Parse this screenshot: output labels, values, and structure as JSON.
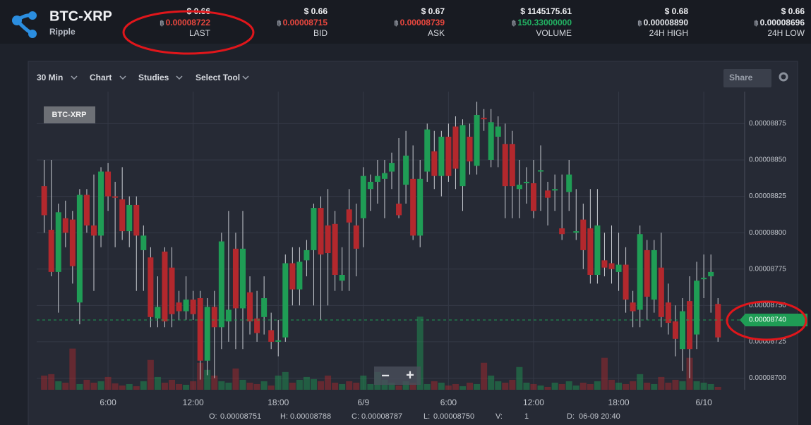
{
  "header": {
    "pair": "BTC-XRP",
    "name": "Ripple",
    "btc_symbol": "฿",
    "stats": [
      {
        "usd": "$ 0.66",
        "btc": "0.00008722",
        "label": "LAST",
        "btc_color": "#e8473e"
      },
      {
        "usd": "$ 0.66",
        "btc": "0.00008715",
        "label": "BID",
        "btc_color": "#e8473e"
      },
      {
        "usd": "$ 0.67",
        "btc": "0.00008739",
        "label": "ASK",
        "btc_color": "#e8473e"
      },
      {
        "usd": "$ 1145175.61",
        "btc": "150.33000000",
        "label": "VOLUME",
        "btc_color": "#22b363"
      },
      {
        "usd": "$ 0.68",
        "btc": "0.00008890",
        "label": "24H HIGH",
        "btc_color": "#e6e8ec"
      },
      {
        "usd": "$ 0.66",
        "btc": "0.00008696",
        "label": "24H LOW",
        "btc_color": "#e6e8ec"
      }
    ]
  },
  "toolbar": {
    "interval": "30 Min",
    "items": [
      "Chart",
      "Studies",
      "Select Tool"
    ],
    "share": "Share",
    "zoom_out": "−",
    "zoom_in": "+"
  },
  "chart_data": {
    "type": "candlestick",
    "symbol_label": "BTC-XRP",
    "up_color": "#1f9d55",
    "down_color": "#b3282d",
    "grid": true,
    "x": [
      1.5,
      2,
      2.5,
      3,
      3.5,
      4,
      4.5,
      5,
      5.5,
      6,
      6.5,
      7,
      7.5,
      8,
      8.5,
      9,
      9.5,
      10,
      10.5,
      11,
      11.5,
      12,
      12.5,
      13,
      13.5,
      14,
      14.5,
      15,
      15.5,
      16,
      16.5,
      17,
      17.5,
      18,
      18.5,
      19,
      19.5,
      20,
      20.5,
      21,
      21.5,
      22,
      22.5,
      23,
      23.5,
      24,
      24.5,
      25,
      25.5,
      26,
      26.5,
      27,
      27.5,
      28,
      28.5,
      29,
      29.5,
      30,
      30.5,
      31,
      31.5,
      32,
      32.5,
      33,
      33.5,
      34,
      34.5,
      35,
      35.5,
      36,
      36.5,
      37,
      37.5,
      38,
      38.5,
      39,
      39.5,
      40,
      40.5,
      41,
      41.5,
      42,
      42.5,
      43,
      43.5,
      44,
      44.5,
      45,
      45.5,
      46,
      46.5,
      47,
      47.5,
      48,
      48.5,
      49
    ],
    "open": [
      8.832e-05,
      8.802e-05,
      8.773e-05,
      8.81e-05,
      8.809e-05,
      8.752e-05,
      8.826e-05,
      8.805e-05,
      8.798e-05,
      8.842e-05,
      8.825e-05,
      8.823e-05,
      8.801e-05,
      8.819e-05,
      8.788e-05,
      8.783e-05,
      8.741e-05,
      8.787e-05,
      8.776e-05,
      8.752e-05,
      8.746e-05,
      8.754e-05,
      8.755e-05,
      8.712e-05,
      8.749e-05,
      8.735e-05,
      8.739e-05,
      8.789e-05,
      8.748e-05,
      8.759e-05,
      8.741e-05,
      8.742e-05,
      8.733e-05,
      8.725e-05,
      8.728e-05,
      8.779e-05,
      8.761e-05,
      8.781e-05,
      8.788e-05,
      8.817e-05,
      8.805e-05,
      8.806e-05,
      8.767e-05,
      8.816e-05,
      8.805e-05,
      8.81e-05,
      8.83e-05,
      8.835e-05,
      8.837e-05,
      8.842e-05,
      8.82e-05,
      8.833e-05,
      8.837e-05,
      8.798e-05,
      8.842e-05,
      8.856e-05,
      8.839e-05,
      8.866e-05,
      8.873e-05,
      8.832e-05,
      8.866e-05,
      8.846e-05,
      8.879e-05,
      8.85e-05,
      8.866e-05,
      8.861e-05,
      8.861e-05,
      8.83e-05,
      8.834e-05,
      8.834e-05,
      8.842e-05,
      8.829e-05,
      8.829e-05,
      8.803e-05,
      8.828e-05,
      8.8e-05,
      8.809e-05,
      8.803e-05,
      8.771e-05,
      8.781e-05,
      8.779e-05,
      8.773e-05,
      8.778e-05,
      8.752e-05,
      8.747e-05,
      8.788e-05,
      8.754e-05,
      8.776e-05,
      8.752e-05,
      8.739e-05,
      8.72e-05,
      8.753e-05,
      8.73e-05,
      8.768e-05,
      8.77e-05,
      8.751e-05
    ],
    "high": [
      8.85e-05,
      8.85e-05,
      8.82e-05,
      8.822e-05,
      8.815e-05,
      8.83e-05,
      8.83e-05,
      8.84e-05,
      8.845e-05,
      8.848e-05,
      8.835e-05,
      8.845e-05,
      8.825e-05,
      8.825e-05,
      8.805e-05,
      8.79e-05,
      8.77e-05,
      8.79e-05,
      8.79e-05,
      8.76e-05,
      8.77e-05,
      8.76e-05,
      8.76e-05,
      8.755e-05,
      8.76e-05,
      8.8e-05,
      8.815e-05,
      8.8e-05,
      8.815e-05,
      8.77e-05,
      8.76e-05,
      8.77e-05,
      8.745e-05,
      8.74e-05,
      8.785e-05,
      8.79e-05,
      8.79e-05,
      8.795e-05,
      8.82e-05,
      8.825e-05,
      8.83e-05,
      8.815e-05,
      8.79e-05,
      8.83e-05,
      8.82e-05,
      8.845e-05,
      8.84e-05,
      8.85e-05,
      8.85e-05,
      8.855e-05,
      8.865e-05,
      8.87e-05,
      8.86e-05,
      8.85e-05,
      8.875e-05,
      8.87e-05,
      8.87e-05,
      8.875e-05,
      8.88e-05,
      8.878e-05,
      8.875e-05,
      8.89e-05,
      8.885e-05,
      8.885e-05,
      8.88e-05,
      8.875e-05,
      8.87e-05,
      8.85e-05,
      8.845e-05,
      8.85e-05,
      8.86e-05,
      8.835e-05,
      8.84e-05,
      8.84e-05,
      8.85e-05,
      8.83e-05,
      8.82e-05,
      8.83e-05,
      8.83e-05,
      8.8e-05,
      8.805e-05,
      8.8e-05,
      8.79e-05,
      8.76e-05,
      8.805e-05,
      8.795e-05,
      8.795e-05,
      8.8e-05,
      8.765e-05,
      8.75e-05,
      8.755e-05,
      8.77e-05,
      8.78e-05,
      8.785e-05,
      8.785e-05,
      8.755e-05
    ],
    "low": [
      8.8e-05,
      8.77e-05,
      8.745e-05,
      8.79e-05,
      8.765e-05,
      8.737e-05,
      8.8e-05,
      8.76e-05,
      8.79e-05,
      8.815e-05,
      8.79e-05,
      8.795e-05,
      8.79e-05,
      8.76e-05,
      8.76e-05,
      8.735e-05,
      8.735e-05,
      8.735e-05,
      8.735e-05,
      8.74e-05,
      8.74e-05,
      8.74e-05,
      8.699e-05,
      8.702e-05,
      8.7e-05,
      8.72e-05,
      8.725e-05,
      8.72e-05,
      8.72e-05,
      8.73e-05,
      8.725e-05,
      8.73e-05,
      8.72e-05,
      8.715e-05,
      8.725e-05,
      8.75e-05,
      8.75e-05,
      8.77e-05,
      8.75e-05,
      8.74e-05,
      8.75e-05,
      8.76e-05,
      8.76e-05,
      8.76e-05,
      8.77e-05,
      8.79e-05,
      8.815e-05,
      8.82e-05,
      8.81e-05,
      8.83e-05,
      8.81e-05,
      8.82e-05,
      8.795e-05,
      8.79e-05,
      8.835e-05,
      8.83e-05,
      8.825e-05,
      8.835e-05,
      8.83e-05,
      8.815e-05,
      8.84e-05,
      8.84e-05,
      8.87e-05,
      8.845e-05,
      8.845e-05,
      8.81e-05,
      8.81e-05,
      8.81e-05,
      8.82e-05,
      8.81e-05,
      8.815e-05,
      8.805e-05,
      8.815e-05,
      8.795e-05,
      8.815e-05,
      8.795e-05,
      8.775e-05,
      8.765e-05,
      8.765e-05,
      8.77e-05,
      8.765e-05,
      8.76e-05,
      8.745e-05,
      8.735e-05,
      8.735e-05,
      8.74e-05,
      8.745e-05,
      8.735e-05,
      8.73e-05,
      8.715e-05,
      8.705e-05,
      8.7e-05,
      8.72e-05,
      8.755e-05,
      8.745e-05,
      8.725e-05
    ],
    "close": [
      8.812e-05,
      8.773e-05,
      8.814e-05,
      8.8e-05,
      8.777e-05,
      8.826e-05,
      8.805e-05,
      8.798e-05,
      8.842e-05,
      8.825e-05,
      8.824e-05,
      8.801e-05,
      8.819e-05,
      8.798e-05,
      8.798e-05,
      8.742e-05,
      8.749e-05,
      8.739e-05,
      8.744e-05,
      8.746e-05,
      8.754e-05,
      8.744e-05,
      8.712e-05,
      8.749e-05,
      8.735e-05,
      8.794e-05,
      8.747e-05,
      8.748e-05,
      8.789e-05,
      8.739e-05,
      8.731e-05,
      8.755e-05,
      8.725e-05,
      8.726e-05,
      8.779e-05,
      8.761e-05,
      8.78e-05,
      8.788e-05,
      8.817e-05,
      8.785e-05,
      8.786e-05,
      8.771e-05,
      8.771e-05,
      8.807e-05,
      8.789e-05,
      8.839e-05,
      8.835e-05,
      8.839e-05,
      8.841e-05,
      8.848e-05,
      8.812e-05,
      8.853e-05,
      8.798e-05,
      8.837e-05,
      8.871e-05,
      8.839e-05,
      8.866e-05,
      8.839e-05,
      8.844e-05,
      8.874e-05,
      8.849e-05,
      8.881e-05,
      8.878e-05,
      8.876e-05,
      8.873e-05,
      8.832e-05,
      8.832e-05,
      8.833e-05,
      8.835e-05,
      8.815e-05,
      8.843e-05,
      8.824e-05,
      8.83e-05,
      8.799e-05,
      8.84e-05,
      8.801e-05,
      8.788e-05,
      8.771e-05,
      8.805e-05,
      8.776e-05,
      8.775e-05,
      8.778e-05,
      8.754e-05,
      8.746e-05,
      8.799e-05,
      8.756e-05,
      8.788e-05,
      8.742e-05,
      8.738e-05,
      8.727e-05,
      8.746e-05,
      8.72e-05,
      8.767e-05,
      8.769e-05,
      8.773e-05,
      8.728e-05
    ],
    "volume": [
      20,
      22,
      12,
      10,
      58,
      8,
      14,
      10,
      12,
      18,
      9,
      6,
      8,
      5,
      12,
      42,
      18,
      10,
      14,
      8,
      7,
      12,
      38,
      28,
      20,
      12,
      10,
      30,
      14,
      10,
      8,
      12,
      6,
      20,
      25,
      10,
      14,
      18,
      15,
      12,
      20,
      10,
      8,
      12,
      10,
      20,
      8,
      25,
      14,
      10,
      6,
      12,
      10,
      103,
      8,
      12,
      10,
      6,
      8,
      5,
      10,
      8,
      38,
      20,
      12,
      10,
      14,
      32,
      10,
      8,
      6,
      4,
      10,
      8,
      12,
      6,
      10,
      8,
      12,
      45,
      14,
      10,
      8,
      12,
      22,
      10,
      8,
      18,
      10,
      14,
      12,
      45,
      12,
      10,
      8,
      4
    ],
    "ylim": [
      8.692e-05,
      8.897e-05
    ],
    "yticks": [
      {
        "value": 8.7e-05,
        "label": "0.00008700"
      },
      8.725e-05,
      {
        "value": 8.75e-05,
        "label": "0.00008750"
      },
      8.775e-05,
      {
        "value": 8.8e-05,
        "label": "0.00008800"
      },
      8.825e-05,
      {
        "value": 8.85e-05,
        "label": "0.00008850"
      },
      8.875e-05
    ],
    "xlim": [
      0.97,
      50.88
    ],
    "xticks": [
      {
        "value": 6,
        "label": "6:00"
      },
      {
        "value": 12,
        "label": "12:00"
      },
      {
        "value": 18,
        "label": "18:00"
      },
      {
        "value": 24,
        "label": "6/9"
      },
      {
        "value": 30,
        "label": "6:00"
      },
      {
        "value": 36,
        "label": "12:00"
      },
      {
        "value": 42,
        "label": "18:00"
      },
      {
        "value": 48,
        "label": "6/10"
      }
    ],
    "y2lim": [
      0,
      420
    ],
    "last_price": {
      "value": 8.74e-05,
      "label": "0.00008740"
    }
  },
  "ohlc_info": [
    {
      "label": "O:",
      "value": "0.00008751"
    },
    {
      "label": "H:",
      "value": "0.00008788"
    },
    {
      "label": "C:",
      "value": "0.00008787"
    },
    {
      "label": "L:",
      "value": "0.00008750"
    },
    {
      "label": "V:",
      "value": "1"
    },
    {
      "label": "D:",
      "value": "06-09 20:40"
    }
  ]
}
